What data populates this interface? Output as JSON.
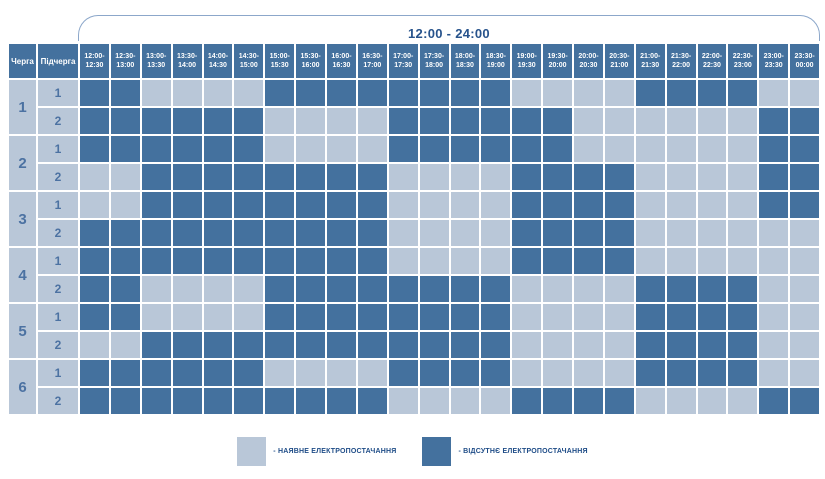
{
  "header": {
    "time_span_label": "12:00 - 24:00"
  },
  "columns": {
    "queue": "Черга",
    "subqueue": "Підчерга"
  },
  "queues": [
    {
      "label": "1",
      "subqueues": [
        "1",
        "2"
      ]
    },
    {
      "label": "2",
      "subqueues": [
        "1",
        "2"
      ]
    },
    {
      "label": "3",
      "subqueues": [
        "1",
        "2"
      ]
    },
    {
      "label": "4",
      "subqueues": [
        "1",
        "2"
      ]
    },
    {
      "label": "5",
      "subqueues": [
        "1",
        "2"
      ]
    },
    {
      "label": "6",
      "subqueues": [
        "1",
        "2"
      ]
    }
  ],
  "legend": [
    {
      "key": "available",
      "label": "- НАЯВНЕ ЕЛЕКТРОПОСТАЧАННЯ"
    },
    {
      "key": "outage",
      "label": "- ВІДСУТНЄ ЕЛЕКТРОПОСТАЧАННЯ"
    }
  ],
  "colors": {
    "background": "#ffffff",
    "outage": "#44719e",
    "available": "#b9c7d8",
    "header_bg": "#44719e",
    "header_text": "#ffffff",
    "label_text": "#4c72a2",
    "brace_line": "#8ca7ca",
    "title_text": "#27538c",
    "legend_text": "#1e4c87"
  },
  "chart_data": {
    "type": "heatmap",
    "title": "12:00 - 24:00",
    "x_labels": [
      "12:00-12:30",
      "12:30-13:00",
      "13:00-13:30",
      "13:30-14:00",
      "14:00-14:30",
      "14:30-15:00",
      "15:00-15:30",
      "15:30-16:00",
      "16:00-16:30",
      "16:30-17:00",
      "17:00-17:30",
      "17:30-18:00",
      "18:00-18:30",
      "18:30-19:00",
      "19:00-19:30",
      "19:30-20:00",
      "20:00-20:30",
      "20:30-21:00",
      "21:00-21:30",
      "21:30-22:00",
      "22:00-22:30",
      "22:30-23:00",
      "23:00-23:30",
      "23:30-00:00"
    ],
    "row_labels": [
      "1.1",
      "1.2",
      "2.1",
      "2.2",
      "3.1",
      "3.2",
      "4.1",
      "4.2",
      "5.1",
      "5.2",
      "6.1",
      "6.2"
    ],
    "values": [
      [
        0,
        0,
        1,
        1,
        1,
        1,
        0,
        0,
        0,
        0,
        0,
        0,
        0,
        0,
        1,
        1,
        1,
        1,
        0,
        0,
        0,
        0,
        1,
        1
      ],
      [
        0,
        0,
        0,
        0,
        0,
        0,
        1,
        1,
        1,
        1,
        0,
        0,
        0,
        0,
        0,
        0,
        1,
        1,
        1,
        1,
        1,
        1,
        0,
        0
      ],
      [
        0,
        0,
        0,
        0,
        0,
        0,
        1,
        1,
        1,
        1,
        0,
        0,
        0,
        0,
        0,
        0,
        1,
        1,
        1,
        1,
        1,
        1,
        0,
        0
      ],
      [
        1,
        1,
        0,
        0,
        0,
        0,
        0,
        0,
        0,
        0,
        1,
        1,
        1,
        1,
        0,
        0,
        0,
        0,
        1,
        1,
        1,
        1,
        0,
        0
      ],
      [
        1,
        1,
        0,
        0,
        0,
        0,
        0,
        0,
        0,
        0,
        1,
        1,
        1,
        1,
        0,
        0,
        0,
        0,
        1,
        1,
        1,
        1,
        0,
        0
      ],
      [
        0,
        0,
        0,
        0,
        0,
        0,
        0,
        0,
        0,
        0,
        1,
        1,
        1,
        1,
        0,
        0,
        0,
        0,
        1,
        1,
        1,
        1,
        1,
        1
      ],
      [
        0,
        0,
        0,
        0,
        0,
        0,
        0,
        0,
        0,
        0,
        1,
        1,
        1,
        1,
        0,
        0,
        0,
        0,
        1,
        1,
        1,
        1,
        1,
        1
      ],
      [
        0,
        0,
        1,
        1,
        1,
        1,
        0,
        0,
        0,
        0,
        0,
        0,
        0,
        0,
        1,
        1,
        1,
        1,
        0,
        0,
        0,
        0,
        1,
        1
      ],
      [
        0,
        0,
        1,
        1,
        1,
        1,
        0,
        0,
        0,
        0,
        0,
        0,
        0,
        0,
        1,
        1,
        1,
        1,
        0,
        0,
        0,
        0,
        1,
        1
      ],
      [
        1,
        1,
        0,
        0,
        0,
        0,
        0,
        0,
        0,
        0,
        0,
        0,
        0,
        0,
        1,
        1,
        1,
        1,
        0,
        0,
        0,
        0,
        1,
        1
      ],
      [
        0,
        0,
        0,
        0,
        0,
        0,
        1,
        1,
        1,
        1,
        0,
        0,
        0,
        0,
        1,
        1,
        1,
        1,
        0,
        0,
        0,
        0,
        1,
        1
      ],
      [
        0,
        0,
        0,
        0,
        0,
        0,
        0,
        0,
        0,
        0,
        1,
        1,
        1,
        1,
        0,
        0,
        0,
        0,
        1,
        1,
        1,
        1,
        0,
        0
      ]
    ],
    "value_meaning": {
      "1": "наявне електропостачання",
      "0": "відсутнє електропостачання"
    },
    "legend_position": "bottom",
    "grid": true
  }
}
